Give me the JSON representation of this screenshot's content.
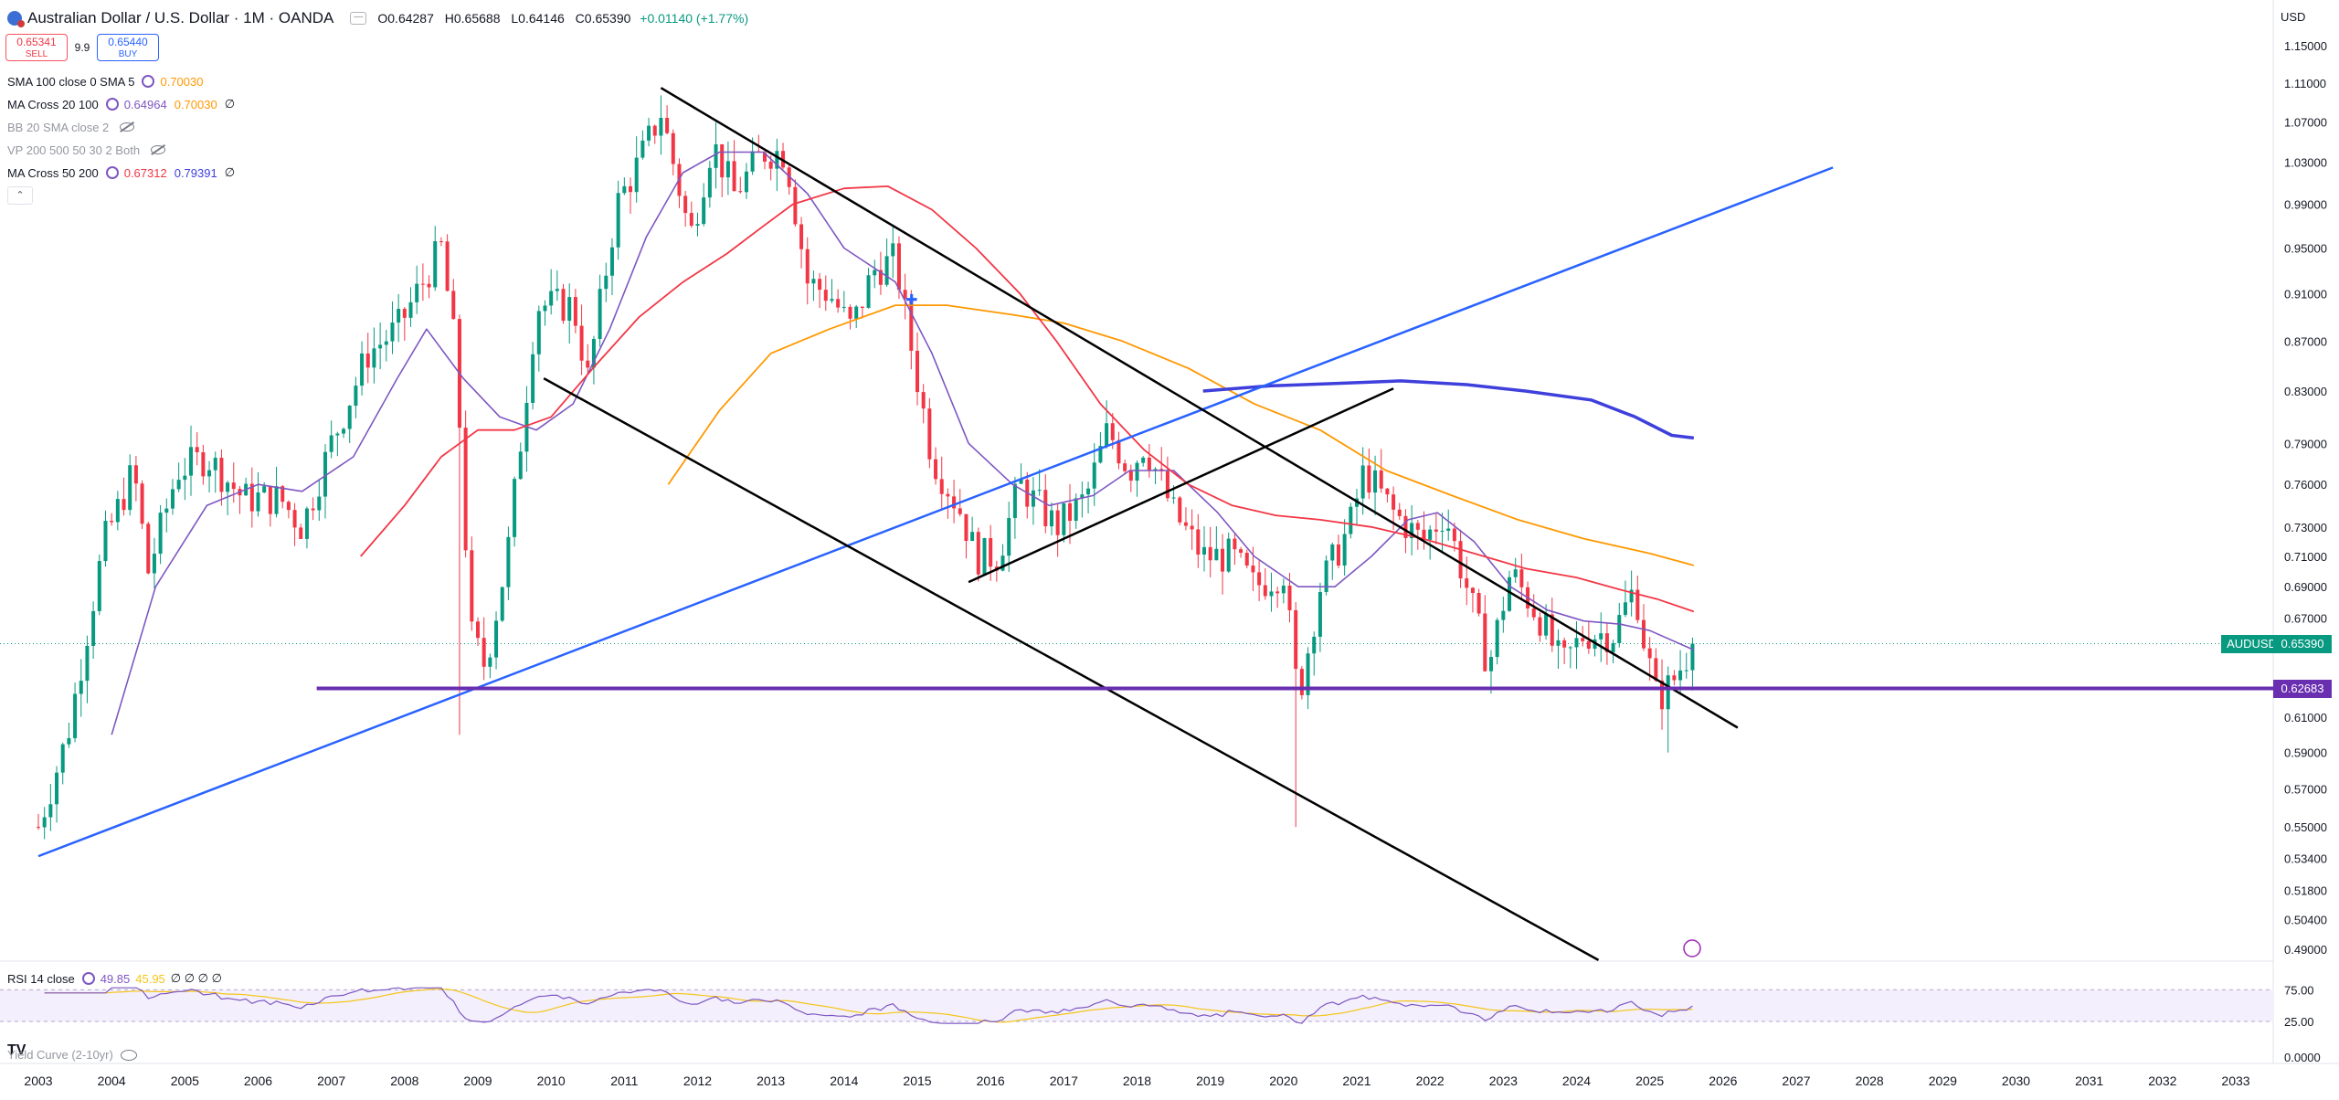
{
  "header": {
    "title": "Australian Dollar / U.S. Dollar · 1M · OANDA",
    "open": "O0.64287",
    "high": "H0.65688",
    "low": "L0.64146",
    "close": "C0.65390",
    "change": "+0.01140 (+1.77%)"
  },
  "trade": {
    "sell_price": "0.65341",
    "sell_label": "SELL",
    "spread": "9.9",
    "buy_price": "0.65440",
    "buy_label": "BUY"
  },
  "indicators": [
    {
      "name": "SMA 100 close 0 SMA 5",
      "values": [
        "0.70030"
      ],
      "colors": [
        "#ff9800"
      ],
      "dim": false
    },
    {
      "name": "MA Cross 20 100",
      "values": [
        "0.64964",
        "0.70030"
      ],
      "colors": [
        "#7e57c2",
        "#ff9800"
      ],
      "dim": false,
      "extra": "∅"
    },
    {
      "name": "BB 20 SMA close 2",
      "values": [],
      "colors": [],
      "dim": true
    },
    {
      "name": "VP 200 500 50 30 2 Both",
      "values": [],
      "colors": [],
      "dim": true
    },
    {
      "name": "MA Cross 50 200",
      "values": [
        "0.67312",
        "0.79391"
      ],
      "colors": [
        "#f23645",
        "#3f3fdc"
      ],
      "dim": false,
      "extra": "∅"
    }
  ],
  "rsi": {
    "name": "RSI 14 close",
    "value1": "49.85",
    "value2": "45.95",
    "extra": "∅ ∅ ∅ ∅"
  },
  "yield_curve": "Yield Curve (2-10yr)",
  "currency": "USD",
  "price_tags": {
    "symbol": "AUDUSD",
    "last": "0.65390",
    "hline": "0.62683"
  },
  "colors": {
    "up": "#089981",
    "down": "#f23645",
    "trend": "#2962ff",
    "hline": "#6a2fb0",
    "sma100": "#ff9800",
    "ma20": "#7e57c2",
    "ma50": "#f23645",
    "ma200": "#3f3fdc"
  },
  "chart_data": {
    "type": "candlestick",
    "symbol": "AUDUSD",
    "interval": "1M",
    "x_ticks": [
      "2003",
      "2004",
      "2005",
      "2006",
      "2007",
      "2008",
      "2009",
      "2010",
      "2011",
      "2012",
      "2013",
      "2014",
      "2015",
      "2016",
      "2017",
      "2018",
      "2019",
      "2020",
      "2021",
      "2022",
      "2023",
      "2024",
      "2025",
      "2026",
      "2027",
      "2028",
      "2029",
      "2030",
      "2031",
      "2032",
      "2033"
    ],
    "y_ticks": [
      "1.15000",
      "1.11000",
      "1.07000",
      "1.03000",
      "0.99000",
      "0.95000",
      "0.91000",
      "0.87000",
      "0.83000",
      "0.79000",
      "0.76000",
      "0.73000",
      "0.71000",
      "0.69000",
      "0.67000",
      "0.65390",
      "0.62683",
      "0.61000",
      "0.59000",
      "0.57000",
      "0.55000",
      "0.53400",
      "0.51800",
      "0.50400",
      "0.49000"
    ],
    "rsi_ticks": [
      "75.00",
      "25.00",
      "0.0000"
    ],
    "ylim": [
      0.48,
      1.17
    ],
    "log_scale": true,
    "last_price": 0.6539,
    "horizontal_line": 0.62683,
    "anchors": [
      [
        2003.0,
        0.55
      ],
      [
        2003.4,
        0.6
      ],
      [
        2003.9,
        0.72
      ],
      [
        2004.3,
        0.77
      ],
      [
        2004.5,
        0.7
      ],
      [
        2004.9,
        0.77
      ],
      [
        2005.3,
        0.78
      ],
      [
        2005.8,
        0.75
      ],
      [
        2006.3,
        0.75
      ],
      [
        2006.6,
        0.73
      ],
      [
        2007.0,
        0.79
      ],
      [
        2007.5,
        0.86
      ],
      [
        2007.9,
        0.88
      ],
      [
        2008.5,
        0.95
      ],
      [
        2008.7,
        0.86
      ],
      [
        2008.9,
        0.66
      ],
      [
        2009.1,
        0.64
      ],
      [
        2009.4,
        0.71
      ],
      [
        2009.8,
        0.9
      ],
      [
        2010.3,
        0.9
      ],
      [
        2010.5,
        0.84
      ],
      [
        2010.9,
        0.99
      ],
      [
        2011.2,
        1.03
      ],
      [
        2011.5,
        1.08
      ],
      [
        2011.7,
        1.02
      ],
      [
        2011.9,
        0.96
      ],
      [
        2012.2,
        1.05
      ],
      [
        2012.5,
        1.0
      ],
      [
        2012.9,
        1.04
      ],
      [
        2013.2,
        1.04
      ],
      [
        2013.5,
        0.92
      ],
      [
        2013.8,
        0.91
      ],
      [
        2014.1,
        0.88
      ],
      [
        2014.4,
        0.93
      ],
      [
        2014.7,
        0.94
      ],
      [
        2014.9,
        0.87
      ],
      [
        2015.2,
        0.78
      ],
      [
        2015.6,
        0.74
      ],
      [
        2015.8,
        0.71
      ],
      [
        2016.1,
        0.71
      ],
      [
        2016.4,
        0.76
      ],
      [
        2016.9,
        0.73
      ],
      [
        2017.3,
        0.75
      ],
      [
        2017.6,
        0.8
      ],
      [
        2017.9,
        0.77
      ],
      [
        2018.1,
        0.79
      ],
      [
        2018.5,
        0.74
      ],
      [
        2018.9,
        0.71
      ],
      [
        2019.3,
        0.71
      ],
      [
        2019.6,
        0.69
      ],
      [
        2020.0,
        0.7
      ],
      [
        2020.2,
        0.62
      ],
      [
        2020.5,
        0.69
      ],
      [
        2020.9,
        0.73
      ],
      [
        2021.1,
        0.77
      ],
      [
        2021.5,
        0.74
      ],
      [
        2021.9,
        0.72
      ],
      [
        2022.2,
        0.74
      ],
      [
        2022.5,
        0.69
      ],
      [
        2022.8,
        0.64
      ],
      [
        2023.1,
        0.7
      ],
      [
        2023.5,
        0.67
      ],
      [
        2023.8,
        0.64
      ],
      [
        2024.1,
        0.66
      ],
      [
        2024.5,
        0.66
      ],
      [
        2024.8,
        0.69
      ],
      [
        2024.9,
        0.66
      ],
      [
        2025.1,
        0.62
      ],
      [
        2025.3,
        0.63
      ],
      [
        2025.6,
        0.6539
      ]
    ],
    "sma100": [
      [
        2011.6,
        0.76
      ],
      [
        2012.3,
        0.815
      ],
      [
        2013.0,
        0.86
      ],
      [
        2013.8,
        0.88
      ],
      [
        2014.7,
        0.9
      ],
      [
        2015.4,
        0.9
      ],
      [
        2016.3,
        0.892
      ],
      [
        2017.0,
        0.885
      ],
      [
        2017.8,
        0.87
      ],
      [
        2018.7,
        0.848
      ],
      [
        2019.6,
        0.82
      ],
      [
        2020.5,
        0.8
      ],
      [
        2021.4,
        0.77
      ],
      [
        2022.3,
        0.752
      ],
      [
        2023.2,
        0.735
      ],
      [
        2024.1,
        0.722
      ],
      [
        2025.0,
        0.712
      ],
      [
        2025.6,
        0.704
      ]
    ],
    "ma20": [
      [
        2004.0,
        0.6
      ],
      [
        2004.6,
        0.69
      ],
      [
        2005.3,
        0.745
      ],
      [
        2006.0,
        0.76
      ],
      [
        2006.6,
        0.755
      ],
      [
        2007.3,
        0.78
      ],
      [
        2007.9,
        0.84
      ],
      [
        2008.3,
        0.88
      ],
      [
        2008.8,
        0.84
      ],
      [
        2009.3,
        0.81
      ],
      [
        2009.8,
        0.8
      ],
      [
        2010.3,
        0.82
      ],
      [
        2010.8,
        0.88
      ],
      [
        2011.3,
        0.96
      ],
      [
        2011.8,
        1.02
      ],
      [
        2012.3,
        1.04
      ],
      [
        2012.9,
        1.04
      ],
      [
        2013.5,
        1.0
      ],
      [
        2014.0,
        0.95
      ],
      [
        2014.7,
        0.92
      ],
      [
        2015.2,
        0.86
      ],
      [
        2015.7,
        0.79
      ],
      [
        2016.3,
        0.76
      ],
      [
        2016.8,
        0.745
      ],
      [
        2017.4,
        0.752
      ],
      [
        2017.9,
        0.77
      ],
      [
        2018.5,
        0.77
      ],
      [
        2019.1,
        0.74
      ],
      [
        2019.6,
        0.71
      ],
      [
        2020.2,
        0.69
      ],
      [
        2020.7,
        0.69
      ],
      [
        2021.2,
        0.71
      ],
      [
        2021.7,
        0.735
      ],
      [
        2022.1,
        0.74
      ],
      [
        2022.6,
        0.72
      ],
      [
        2023.1,
        0.69
      ],
      [
        2023.6,
        0.675
      ],
      [
        2024.1,
        0.668
      ],
      [
        2024.6,
        0.666
      ],
      [
        2025.0,
        0.662
      ],
      [
        2025.6,
        0.65
      ]
    ],
    "ma50": [
      [
        2007.4,
        0.71
      ],
      [
        2008.0,
        0.745
      ],
      [
        2008.5,
        0.78
      ],
      [
        2009.0,
        0.8
      ],
      [
        2009.5,
        0.8
      ],
      [
        2010.0,
        0.81
      ],
      [
        2010.6,
        0.85
      ],
      [
        2011.2,
        0.89
      ],
      [
        2011.8,
        0.92
      ],
      [
        2012.4,
        0.945
      ],
      [
        2012.9,
        0.97
      ],
      [
        2013.3,
        0.99
      ],
      [
        2014.0,
        1.005
      ],
      [
        2014.6,
        1.007
      ],
      [
        2015.2,
        0.985
      ],
      [
        2015.8,
        0.95
      ],
      [
        2016.4,
        0.91
      ],
      [
        2016.9,
        0.87
      ],
      [
        2017.5,
        0.82
      ],
      [
        2018.1,
        0.785
      ],
      [
        2018.7,
        0.76
      ],
      [
        2019.3,
        0.745
      ],
      [
        2019.9,
        0.738
      ],
      [
        2020.5,
        0.735
      ],
      [
        2021.2,
        0.73
      ],
      [
        2021.9,
        0.722
      ],
      [
        2022.6,
        0.712
      ],
      [
        2023.3,
        0.702
      ],
      [
        2024.0,
        0.696
      ],
      [
        2024.6,
        0.688
      ],
      [
        2025.1,
        0.682
      ],
      [
        2025.6,
        0.674
      ]
    ],
    "ma200": [
      [
        2018.9,
        0.83
      ],
      [
        2019.8,
        0.834
      ],
      [
        2020.7,
        0.836
      ],
      [
        2021.6,
        0.838
      ],
      [
        2022.5,
        0.835
      ],
      [
        2023.3,
        0.83
      ],
      [
        2024.2,
        0.823
      ],
      [
        2024.8,
        0.81
      ],
      [
        2025.3,
        0.796
      ],
      [
        2025.6,
        0.794
      ]
    ],
    "trendlines": [
      {
        "color": "#2962ff",
        "from": [
          2003.0,
          0.535
        ],
        "to": [
          2027.5,
          1.025
        ]
      },
      {
        "color": "#000000",
        "from": [
          2011.5,
          1.105
        ],
        "to": [
          2026.2,
          0.604
        ]
      },
      {
        "color": "#000000",
        "from": [
          2009.9,
          0.84
        ],
        "to": [
          2024.3,
          0.485
        ]
      },
      {
        "color": "#000000",
        "from": [
          2015.7,
          0.693
        ],
        "to": [
          2021.5,
          0.832
        ]
      }
    ]
  }
}
